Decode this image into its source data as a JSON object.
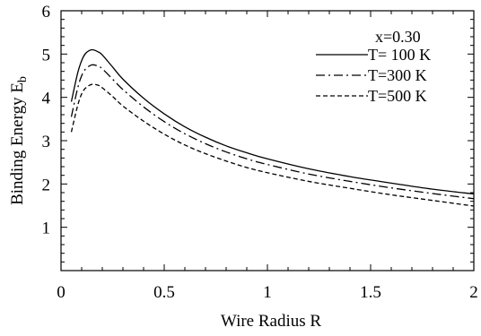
{
  "chart_data": {
    "type": "line",
    "title": "",
    "xlabel": "Wire Radius R",
    "ylabel_main": "Binding Energy E",
    "ylabel_sub": "b",
    "xlim": [
      0,
      2
    ],
    "ylim": [
      0,
      6
    ],
    "x_ticks": [
      "0",
      "0.5",
      "1",
      "1.5",
      "2"
    ],
    "y_ticks": [
      "1",
      "2",
      "3",
      "4",
      "5",
      "6"
    ],
    "legend_title": "x=0.30",
    "legend_position": "top-right",
    "grid": false,
    "series": [
      {
        "name": "T= 100 K",
        "style": "solid",
        "x": [
          0.05,
          0.08,
          0.1,
          0.12,
          0.15,
          0.18,
          0.2,
          0.25,
          0.3,
          0.4,
          0.5,
          0.6,
          0.7,
          0.8,
          0.9,
          1.0,
          1.2,
          1.4,
          1.6,
          1.8,
          2.0
        ],
        "y": [
          3.9,
          4.55,
          4.85,
          5.02,
          5.1,
          5.05,
          4.98,
          4.7,
          4.42,
          3.98,
          3.62,
          3.32,
          3.08,
          2.88,
          2.72,
          2.58,
          2.35,
          2.17,
          2.02,
          1.88,
          1.77
        ]
      },
      {
        "name": "T=300 K",
        "style": "dash-dot",
        "x": [
          0.05,
          0.08,
          0.1,
          0.12,
          0.15,
          0.18,
          0.2,
          0.25,
          0.3,
          0.4,
          0.5,
          0.6,
          0.7,
          0.8,
          0.9,
          1.0,
          1.2,
          1.4,
          1.6,
          1.8,
          2.0
        ],
        "y": [
          3.55,
          4.2,
          4.5,
          4.66,
          4.75,
          4.72,
          4.66,
          4.42,
          4.18,
          3.78,
          3.44,
          3.16,
          2.93,
          2.74,
          2.58,
          2.45,
          2.23,
          2.06,
          1.91,
          1.78,
          1.66
        ]
      },
      {
        "name": "T=500 K",
        "style": "dashed",
        "x": [
          0.05,
          0.08,
          0.1,
          0.12,
          0.15,
          0.18,
          0.2,
          0.25,
          0.3,
          0.4,
          0.5,
          0.6,
          0.7,
          0.8,
          0.9,
          1.0,
          1.2,
          1.4,
          1.6,
          1.8,
          2.0
        ],
        "y": [
          3.2,
          3.8,
          4.08,
          4.22,
          4.3,
          4.28,
          4.22,
          4.02,
          3.8,
          3.45,
          3.15,
          2.9,
          2.7,
          2.53,
          2.38,
          2.26,
          2.06,
          1.9,
          1.75,
          1.62,
          1.49
        ]
      }
    ]
  }
}
